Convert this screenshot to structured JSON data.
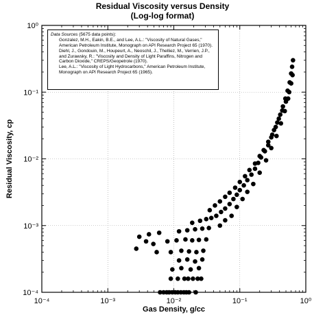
{
  "chart_data": {
    "type": "scatter",
    "title": "Residual Viscosity versus Density",
    "subtitle": "(Log-log format)",
    "xlabel": "Gas Density, g/cc",
    "ylabel": "Residual Viscosity, cp",
    "xscale": "log",
    "yscale": "log",
    "xlim": [
      0.0001,
      1
    ],
    "ylim": [
      0.0001,
      1
    ],
    "grid": true,
    "x_tick_labels": [
      "10⁻⁴",
      "10⁻³",
      "10⁻²",
      "10⁻¹",
      "10⁰"
    ],
    "y_tick_labels": [
      "10⁻⁴",
      "10⁻³",
      "10⁻²",
      "10⁻¹",
      "10⁰"
    ],
    "x_tick_values": [
      0.0001,
      0.001,
      0.01,
      0.1,
      1
    ],
    "y_tick_values": [
      0.0001,
      0.001,
      0.01,
      0.1,
      1
    ],
    "marker_color": "#000000",
    "legend_placement": "top-left",
    "legend": {
      "header_italic": "Data Sources",
      "header_rest": " (5675 data points):",
      "sources": [
        "Gonzalez, M.H., Eakin, B.E., and Lee, A.L.: \"Viscosity of Natural Gases,\" American Petroleum Institute, Monograph on API Research Project 65 (1970).",
        "Diehl, J., Gondouin, M., Houpeurt, A., Neoschil, J., Thelliez, M., Verrien, J.P., and Zurawsky, R.: \"Viscosity and Density of Light Paraffins, Nitrogen and Carbon Dioxide,\" CREPS/Geopetrole (1970).",
        "Lee, A.L.: \"Viscosity of Light Hydrocarbons,\" American Petroleum Institute, Monograph on API Research Project 65 (1965)."
      ]
    },
    "points": [
      [
        0.0027,
        0.00045
      ],
      [
        0.003,
        0.00068
      ],
      [
        0.0038,
        0.00058
      ],
      [
        0.0042,
        0.00074
      ],
      [
        0.0049,
        0.00053
      ],
      [
        0.0055,
        0.0004
      ],
      [
        0.006,
        0.00078
      ],
      [
        0.0062,
        0.0001
      ],
      [
        0.007,
        0.0001
      ],
      [
        0.0078,
        0.0001
      ],
      [
        0.0085,
        0.0001
      ],
      [
        0.0095,
        0.0001
      ],
      [
        0.0105,
        0.0001
      ],
      [
        0.0115,
        0.0001
      ],
      [
        0.0128,
        0.0001
      ],
      [
        0.0142,
        0.0001
      ],
      [
        0.0155,
        0.0001
      ],
      [
        0.017,
        0.0001
      ],
      [
        0.0215,
        0.0001
      ],
      [
        0.009,
        0.00016
      ],
      [
        0.0115,
        0.00016
      ],
      [
        0.0145,
        0.00016
      ],
      [
        0.0165,
        0.00016
      ],
      [
        0.0195,
        0.00016
      ],
      [
        0.023,
        0.00016
      ],
      [
        0.026,
        0.00016
      ],
      [
        0.0095,
        0.00022
      ],
      [
        0.013,
        0.00023
      ],
      [
        0.018,
        0.00022
      ],
      [
        0.024,
        0.00023
      ],
      [
        0.012,
        0.0003
      ],
      [
        0.016,
        0.00031
      ],
      [
        0.021,
        0.00029
      ],
      [
        0.027,
        0.00031
      ],
      [
        0.009,
        0.0004
      ],
      [
        0.013,
        0.00042
      ],
      [
        0.017,
        0.00041
      ],
      [
        0.022,
        0.0004
      ],
      [
        0.028,
        0.00042
      ],
      [
        0.008,
        0.00058
      ],
      [
        0.011,
        0.0006
      ],
      [
        0.015,
        0.00062
      ],
      [
        0.019,
        0.0006
      ],
      [
        0.024,
        0.00061
      ],
      [
        0.031,
        0.00062
      ],
      [
        0.012,
        0.00082
      ],
      [
        0.016,
        0.00085
      ],
      [
        0.021,
        0.00088
      ],
      [
        0.027,
        0.0009
      ],
      [
        0.034,
        0.00092
      ],
      [
        0.019,
        0.0011
      ],
      [
        0.025,
        0.00118
      ],
      [
        0.031,
        0.00125
      ],
      [
        0.037,
        0.0013
      ],
      [
        0.044,
        0.0014
      ],
      [
        0.052,
        0.0016
      ],
      [
        0.06,
        0.0018
      ],
      [
        0.07,
        0.0021
      ],
      [
        0.08,
        0.0025
      ],
      [
        0.09,
        0.0029
      ],
      [
        0.1,
        0.0034
      ],
      [
        0.115,
        0.004
      ],
      [
        0.13,
        0.0048
      ],
      [
        0.15,
        0.0058
      ],
      [
        0.17,
        0.0071
      ],
      [
        0.19,
        0.0087
      ],
      [
        0.21,
        0.0105
      ],
      [
        0.24,
        0.013
      ],
      [
        0.27,
        0.016
      ],
      [
        0.3,
        0.021
      ],
      [
        0.33,
        0.027
      ],
      [
        0.37,
        0.035
      ],
      [
        0.41,
        0.046
      ],
      [
        0.45,
        0.061
      ],
      [
        0.49,
        0.08
      ],
      [
        0.53,
        0.105
      ],
      [
        0.57,
        0.14
      ],
      [
        0.6,
        0.19
      ],
      [
        0.62,
        0.24
      ],
      [
        0.64,
        0.3
      ],
      [
        0.05,
        0.001
      ],
      [
        0.06,
        0.0012
      ],
      [
        0.075,
        0.0014
      ],
      [
        0.09,
        0.0019
      ],
      [
        0.11,
        0.0025
      ],
      [
        0.13,
        0.0032
      ],
      [
        0.16,
        0.0042
      ],
      [
        0.2,
        0.0062
      ],
      [
        0.25,
        0.0095
      ],
      [
        0.3,
        0.0145
      ],
      [
        0.36,
        0.022
      ],
      [
        0.42,
        0.034
      ],
      [
        0.48,
        0.052
      ],
      [
        0.54,
        0.08
      ],
      [
        0.035,
        0.0017
      ],
      [
        0.042,
        0.002
      ],
      [
        0.05,
        0.0023
      ],
      [
        0.06,
        0.0027
      ],
      [
        0.07,
        0.0031
      ],
      [
        0.085,
        0.0037
      ],
      [
        0.1,
        0.0045
      ],
      [
        0.12,
        0.0055
      ],
      [
        0.14,
        0.0068
      ],
      [
        0.17,
        0.0085
      ],
      [
        0.2,
        0.011
      ],
      [
        0.23,
        0.0135
      ],
      [
        0.27,
        0.018
      ],
      [
        0.31,
        0.023
      ],
      [
        0.35,
        0.03
      ],
      [
        0.39,
        0.04
      ],
      [
        0.44,
        0.053
      ],
      [
        0.5,
        0.072
      ],
      [
        0.56,
        0.1
      ],
      [
        0.6,
        0.135
      ],
      [
        0.63,
        0.18
      ]
    ]
  }
}
